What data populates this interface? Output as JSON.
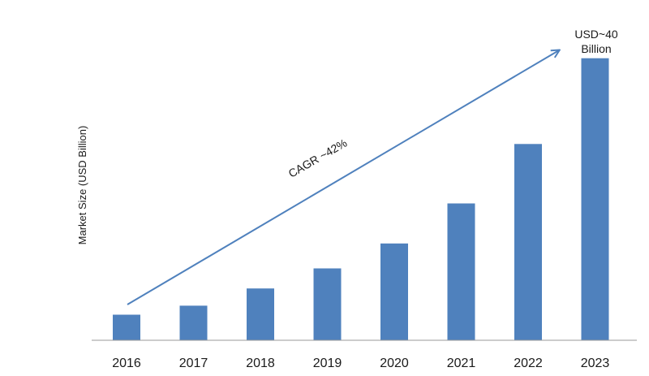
{
  "chart_data": {
    "type": "bar",
    "categories": [
      "2016",
      "2017",
      "2018",
      "2019",
      "2020",
      "2021",
      "2022",
      "2023"
    ],
    "values": [
      3.7,
      5.0,
      7.5,
      10.4,
      14.0,
      19.8,
      28.4,
      40.8
    ],
    "xlabel": "",
    "ylabel": "Market Size (USD Billion)",
    "ylim": [
      0,
      41
    ],
    "grid": false,
    "bar_color": "#4f81bd",
    "arrow_color": "#4f81bd",
    "annotations": {
      "cagr": "CAGR ~42%",
      "end_value_line1": "USD~40",
      "end_value_line2": "Billion"
    }
  }
}
